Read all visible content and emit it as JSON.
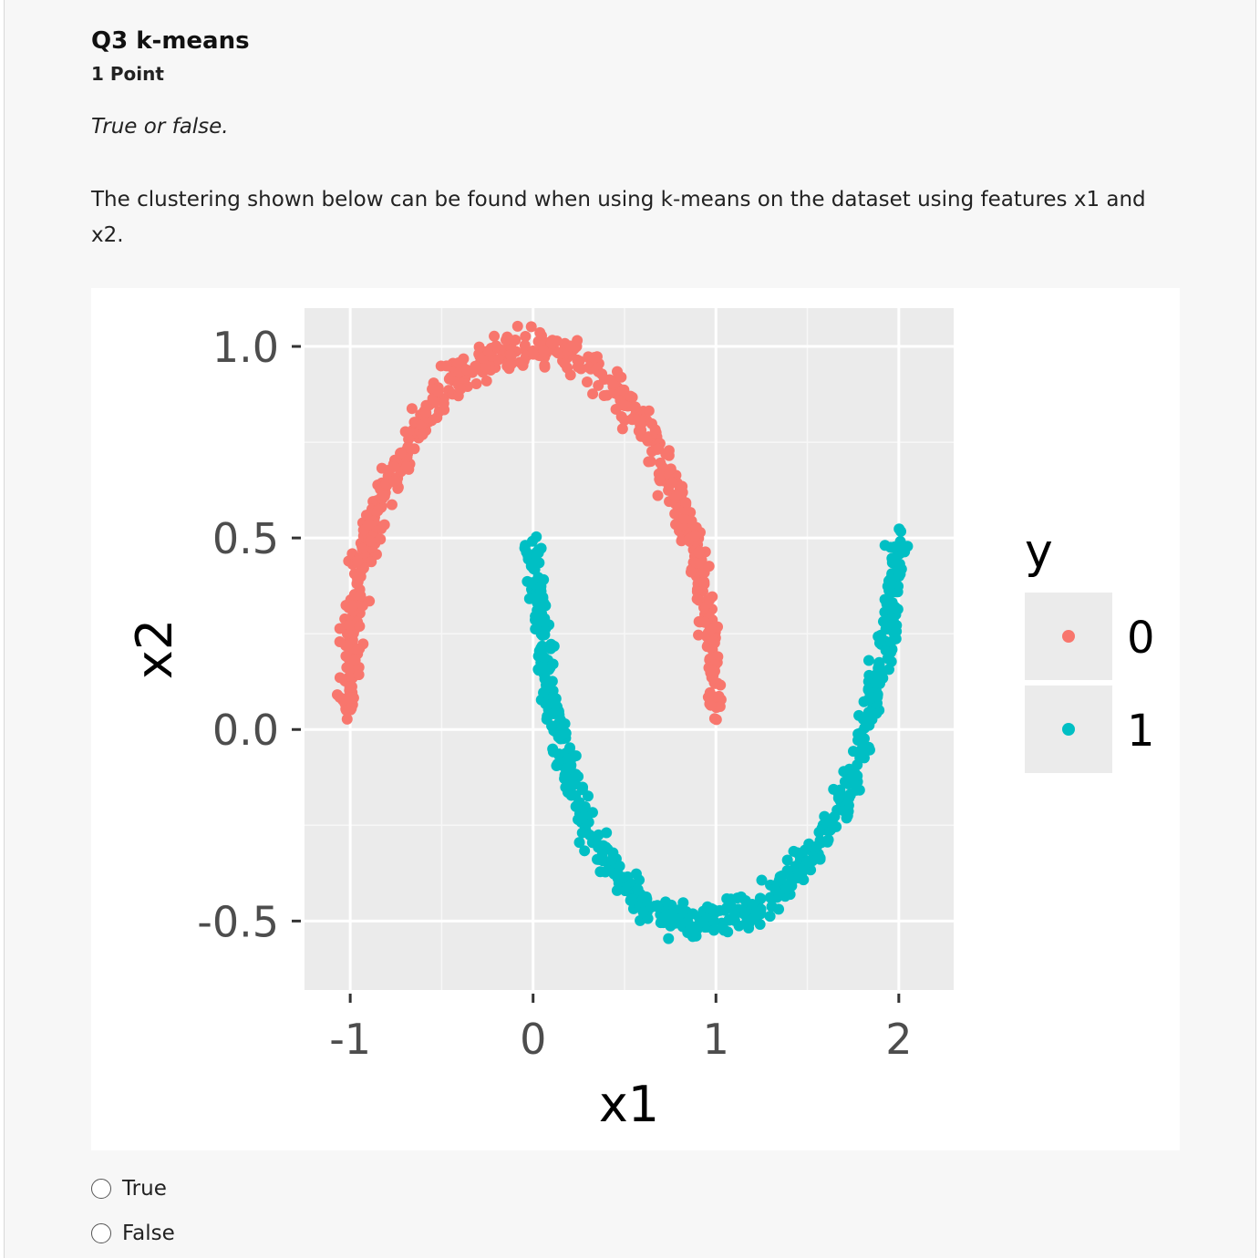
{
  "question": {
    "title": "Q3 k-means",
    "points": "1 Point",
    "instruction": "True or false.",
    "text": "The clustering shown below can be found when using k-means on the dataset using features x1 and x2."
  },
  "options": [
    {
      "label": "True",
      "selected": false
    },
    {
      "label": "False",
      "selected": false
    }
  ],
  "chart_data": {
    "type": "scatter",
    "xlabel": "x1",
    "ylabel": "x2",
    "xlim": [
      -1.25,
      2.3
    ],
    "ylim": [
      -0.68,
      1.1
    ],
    "xticks": [
      -1,
      0,
      1,
      2
    ],
    "xtick_labels": [
      "-1",
      "0",
      "1",
      "2"
    ],
    "yticks": [
      -0.5,
      0.0,
      0.5,
      1.0
    ],
    "ytick_labels": [
      "-0.5",
      "0.0",
      "0.5",
      "1.0"
    ],
    "grid": true,
    "legend": {
      "title": "y",
      "position": "right",
      "entries": [
        "0",
        "1"
      ]
    },
    "series": [
      {
        "name": "0",
        "color": "#F8766D",
        "shape": "upper half-moon (x1 = cos t, x2 = sin t, t from 0 to pi), noise sd ~0.05",
        "points": [
          [
            -1.02,
            0.05
          ],
          [
            -1.0,
            0.18
          ],
          [
            -0.98,
            0.3
          ],
          [
            -0.95,
            0.42
          ],
          [
            -0.9,
            0.5
          ],
          [
            -0.82,
            0.62
          ],
          [
            -0.7,
            0.72
          ],
          [
            -0.55,
            0.85
          ],
          [
            -0.4,
            0.93
          ],
          [
            -0.2,
            0.98
          ],
          [
            0.0,
            1.0
          ],
          [
            0.2,
            0.98
          ],
          [
            0.4,
            0.92
          ],
          [
            0.55,
            0.83
          ],
          [
            0.7,
            0.72
          ],
          [
            0.8,
            0.6
          ],
          [
            0.88,
            0.48
          ],
          [
            0.93,
            0.36
          ],
          [
            0.97,
            0.22
          ],
          [
            1.0,
            0.05
          ]
        ]
      },
      {
        "name": "1",
        "color": "#00BFC4",
        "shape": "lower half-moon (x1 = 1 - cos t, x2 = 0.5 - sin t, t from 0 to pi), noise sd ~0.05",
        "points": [
          [
            0.0,
            0.5
          ],
          [
            0.02,
            0.38
          ],
          [
            0.05,
            0.25
          ],
          [
            0.08,
            0.12
          ],
          [
            0.13,
            0.0
          ],
          [
            0.2,
            -0.12
          ],
          [
            0.3,
            -0.25
          ],
          [
            0.45,
            -0.37
          ],
          [
            0.6,
            -0.45
          ],
          [
            0.8,
            -0.5
          ],
          [
            1.0,
            -0.5
          ],
          [
            1.2,
            -0.48
          ],
          [
            1.4,
            -0.4
          ],
          [
            1.55,
            -0.3
          ],
          [
            1.7,
            -0.18
          ],
          [
            1.8,
            -0.05
          ],
          [
            1.88,
            0.1
          ],
          [
            1.94,
            0.25
          ],
          [
            1.98,
            0.38
          ],
          [
            2.0,
            0.5
          ]
        ]
      }
    ]
  }
}
